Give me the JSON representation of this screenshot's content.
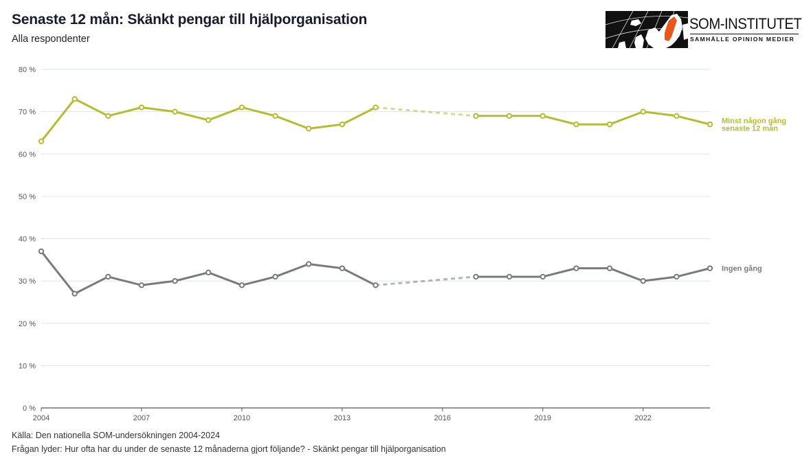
{
  "header": {
    "title": "Senaste 12 mån: Skänkt pengar till hjälporganisation",
    "subtitle": "Alla respondenter"
  },
  "logo": {
    "name": "SOM-INSTITUTET",
    "tagline": "SAMHÄLLE  OPINION  MEDIER"
  },
  "footer": {
    "source": "Källa: Den nationella SOM-undersökningen 2004-2024",
    "question": "Frågan lyder: Hur ofta har du under de senaste 12 månaderna gjort följande? - Skänkt pengar till hjälporganisation"
  },
  "chart_data": {
    "type": "line",
    "title": "Senaste 12 mån: Skänkt pengar till hjälporganisation",
    "subtitle": "Alla respondenter",
    "xlabel": "",
    "ylabel": "",
    "xlim": [
      2004,
      2024
    ],
    "ylim": [
      0,
      80
    ],
    "grid": true,
    "y_ticks": [
      0,
      10,
      20,
      30,
      40,
      50,
      60,
      70,
      80
    ],
    "y_tick_labels": [
      "0 %",
      "10 %",
      "20 %",
      "30 %",
      "40 %",
      "50 %",
      "60 %",
      "70 %",
      "80 %"
    ],
    "x_ticks": [
      2004,
      2007,
      2010,
      2013,
      2016,
      2019,
      2022
    ],
    "x_tick_labels": [
      "2004",
      "2007",
      "2010",
      "2013",
      "2016",
      "2019",
      "2022"
    ],
    "legend_placement": "right (inline labels at line ends)",
    "gap_years": [
      2015,
      2016
    ],
    "series": [
      {
        "name": "Minst någon gång senaste 12 mån",
        "label_lines": [
          "Minst någon gång",
          "senaste 12 mån"
        ],
        "color": "#b5bd2e",
        "x": [
          2004,
          2005,
          2006,
          2007,
          2008,
          2009,
          2010,
          2011,
          2012,
          2013,
          2014,
          2017,
          2018,
          2019,
          2020,
          2021,
          2022,
          2023,
          2024
        ],
        "values": [
          63,
          73,
          69,
          71,
          70,
          68,
          71,
          69,
          66,
          67,
          71,
          69,
          69,
          69,
          67,
          67,
          70,
          69,
          67
        ]
      },
      {
        "name": "Ingen gång",
        "label_lines": [
          "Ingen gång"
        ],
        "color": "#7a7a7a",
        "x": [
          2004,
          2005,
          2006,
          2007,
          2008,
          2009,
          2010,
          2011,
          2012,
          2013,
          2014,
          2017,
          2018,
          2019,
          2020,
          2021,
          2022,
          2023,
          2024
        ],
        "values": [
          37,
          27,
          31,
          29,
          30,
          32,
          29,
          31,
          34,
          33,
          29,
          31,
          31,
          31,
          33,
          33,
          30,
          31,
          33
        ]
      }
    ]
  }
}
